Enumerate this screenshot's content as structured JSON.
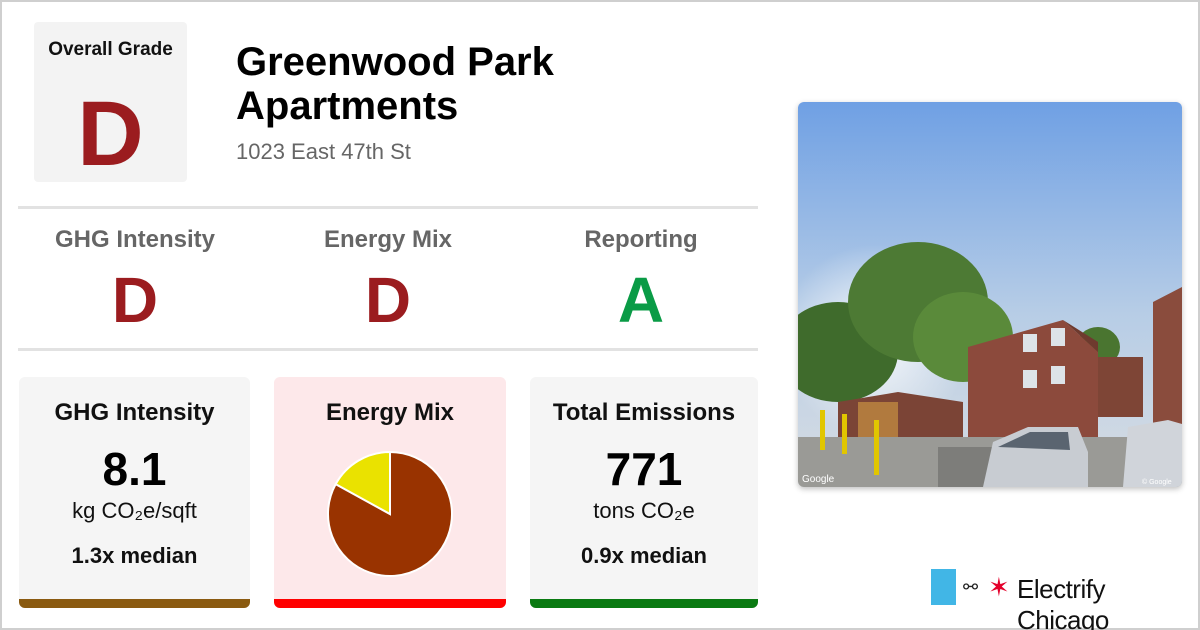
{
  "building": {
    "name": "Greenwood Park Apartments",
    "address": "1023 East 47th St"
  },
  "overall": {
    "label": "Overall Grade",
    "grade": "D",
    "grade_color": "#9b1c1f"
  },
  "grades": [
    {
      "label": "GHG Intensity",
      "grade": "D",
      "color": "#9b1c1f"
    },
    {
      "label": "Energy Mix",
      "grade": "D",
      "color": "#9b1c1f"
    },
    {
      "label": "Reporting",
      "grade": "A",
      "color": "#0a9b46"
    }
  ],
  "cards": {
    "ghg": {
      "title": "GHG Intensity",
      "value": "8.1",
      "unit": "kg CO₂e/sqft",
      "median": "1.3x median",
      "bar_color": "#8a5a10",
      "bg_color": "#f5f5f5"
    },
    "mix": {
      "title": "Energy Mix",
      "bar_color": "#ff0000",
      "bg_color": "#fde8ea"
    },
    "total": {
      "title": "Total Emissions",
      "value": "771",
      "unit": "tons CO₂e",
      "median": "0.9x median",
      "bar_color": "#0a7a12",
      "bg_color": "#f5f5f5"
    }
  },
  "chart_data": {
    "type": "pie",
    "slices": [
      {
        "value": 0.83,
        "color": "#993300"
      },
      {
        "value": 0.17,
        "color": "#eae200"
      }
    ]
  },
  "photo": {
    "watermark": "Google",
    "copyright": "© Google"
  },
  "logo": {
    "text": "Electrify Chicago",
    "colors": {
      "flag": "#41b6e6",
      "star": "#e4002b"
    }
  }
}
